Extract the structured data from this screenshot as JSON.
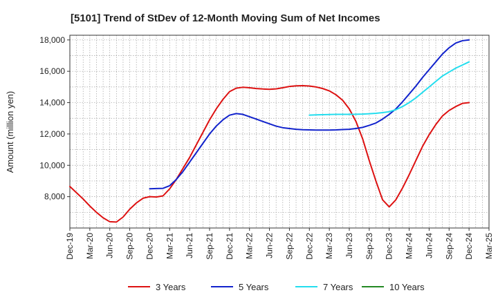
{
  "chart_data": {
    "type": "line",
    "title": "[5101]  Trend of StDev of 12-Month Moving Sum of Net Incomes",
    "xlabel": "",
    "ylabel": "Amount (million yen)",
    "x_ticks": [
      "Dec-19",
      "Mar-20",
      "Jun-20",
      "Sep-20",
      "Dec-20",
      "Mar-21",
      "Jun-21",
      "Sep-21",
      "Dec-21",
      "Mar-22",
      "Jun-22",
      "Sep-22",
      "Dec-22",
      "Mar-23",
      "Jun-23",
      "Sep-23",
      "Dec-23",
      "Mar-24",
      "Jun-24",
      "Sep-24",
      "Dec-24",
      "Mar-25"
    ],
    "x_range": [
      "2019-12",
      "2025-03"
    ],
    "ylim": [
      6000,
      18300
    ],
    "y_ticks": [
      8000,
      10000,
      12000,
      14000,
      16000,
      18000
    ],
    "y_tick_labels": [
      "8,000",
      "10,000",
      "12,000",
      "14,000",
      "16,000",
      "18,000"
    ],
    "grid": true,
    "legend_position": "bottom",
    "series": [
      {
        "name": "3 Years",
        "color": "#dd1111",
        "x": [
          "2019-12",
          "2020-01",
          "2020-02",
          "2020-03",
          "2020-04",
          "2020-05",
          "2020-06",
          "2020-07",
          "2020-08",
          "2020-09",
          "2020-10",
          "2020-11",
          "2020-12",
          "2021-01",
          "2021-02",
          "2021-03",
          "2021-04",
          "2021-05",
          "2021-06",
          "2021-07",
          "2021-08",
          "2021-09",
          "2021-10",
          "2021-11",
          "2021-12",
          "2022-01",
          "2022-02",
          "2022-03",
          "2022-04",
          "2022-05",
          "2022-06",
          "2022-07",
          "2022-08",
          "2022-09",
          "2022-10",
          "2022-11",
          "2022-12",
          "2023-01",
          "2023-02",
          "2023-03",
          "2023-04",
          "2023-05",
          "2023-06",
          "2023-07",
          "2023-08",
          "2023-09",
          "2023-10",
          "2023-11",
          "2023-12",
          "2024-01",
          "2024-02",
          "2024-03",
          "2024-04",
          "2024-05",
          "2024-06",
          "2024-07",
          "2024-08",
          "2024-09",
          "2024-10",
          "2024-11",
          "2024-12"
        ],
        "values": [
          8650,
          8250,
          7850,
          7400,
          7000,
          6650,
          6400,
          6380,
          6700,
          7200,
          7600,
          7900,
          8000,
          7980,
          8050,
          8500,
          9100,
          9800,
          10500,
          11300,
          12100,
          12900,
          13600,
          14200,
          14700,
          14920,
          14980,
          14950,
          14900,
          14870,
          14850,
          14880,
          14950,
          15030,
          15070,
          15080,
          15060,
          15000,
          14900,
          14750,
          14500,
          14150,
          13600,
          12800,
          11700,
          10300,
          9000,
          7800,
          7350,
          7800,
          8550,
          9400,
          10300,
          11200,
          11950,
          12600,
          13150,
          13500,
          13750,
          13950,
          14000
        ]
      },
      {
        "name": "5 Years",
        "color": "#1122cc",
        "x": [
          "2020-12",
          "2021-01",
          "2021-02",
          "2021-03",
          "2021-04",
          "2021-05",
          "2021-06",
          "2021-07",
          "2021-08",
          "2021-09",
          "2021-10",
          "2021-11",
          "2021-12",
          "2022-01",
          "2022-02",
          "2022-03",
          "2022-04",
          "2022-05",
          "2022-06",
          "2022-07",
          "2022-08",
          "2022-09",
          "2022-10",
          "2022-11",
          "2022-12",
          "2023-01",
          "2023-02",
          "2023-03",
          "2023-04",
          "2023-05",
          "2023-06",
          "2023-07",
          "2023-08",
          "2023-09",
          "2023-10",
          "2023-11",
          "2023-12",
          "2024-01",
          "2024-02",
          "2024-03",
          "2024-04",
          "2024-05",
          "2024-06",
          "2024-07",
          "2024-08",
          "2024-09",
          "2024-10",
          "2024-11",
          "2024-12"
        ],
        "values": [
          8500,
          8520,
          8530,
          8700,
          9100,
          9600,
          10200,
          10800,
          11400,
          12000,
          12500,
          12900,
          13200,
          13300,
          13250,
          13100,
          12950,
          12800,
          12650,
          12500,
          12400,
          12350,
          12300,
          12270,
          12260,
          12250,
          12250,
          12250,
          12260,
          12280,
          12300,
          12350,
          12420,
          12550,
          12700,
          12950,
          13250,
          13600,
          14050,
          14550,
          15050,
          15600,
          16100,
          16600,
          17100,
          17500,
          17800,
          17950,
          18000
        ]
      },
      {
        "name": "7 Years",
        "color": "#22ddee",
        "x": [
          "2022-12",
          "2023-01",
          "2023-02",
          "2023-03",
          "2023-04",
          "2023-05",
          "2023-06",
          "2023-07",
          "2023-08",
          "2023-09",
          "2023-10",
          "2023-11",
          "2023-12",
          "2024-01",
          "2024-02",
          "2024-03",
          "2024-04",
          "2024-05",
          "2024-06",
          "2024-07",
          "2024-08",
          "2024-09",
          "2024-10",
          "2024-11",
          "2024-12"
        ],
        "values": [
          13200,
          13220,
          13230,
          13240,
          13250,
          13250,
          13250,
          13260,
          13270,
          13290,
          13320,
          13360,
          13420,
          13550,
          13750,
          14000,
          14300,
          14650,
          15000,
          15350,
          15700,
          15950,
          16200,
          16400,
          16600
        ]
      },
      {
        "name": "10 Years",
        "color": "#228822",
        "x": [],
        "values": []
      }
    ]
  }
}
